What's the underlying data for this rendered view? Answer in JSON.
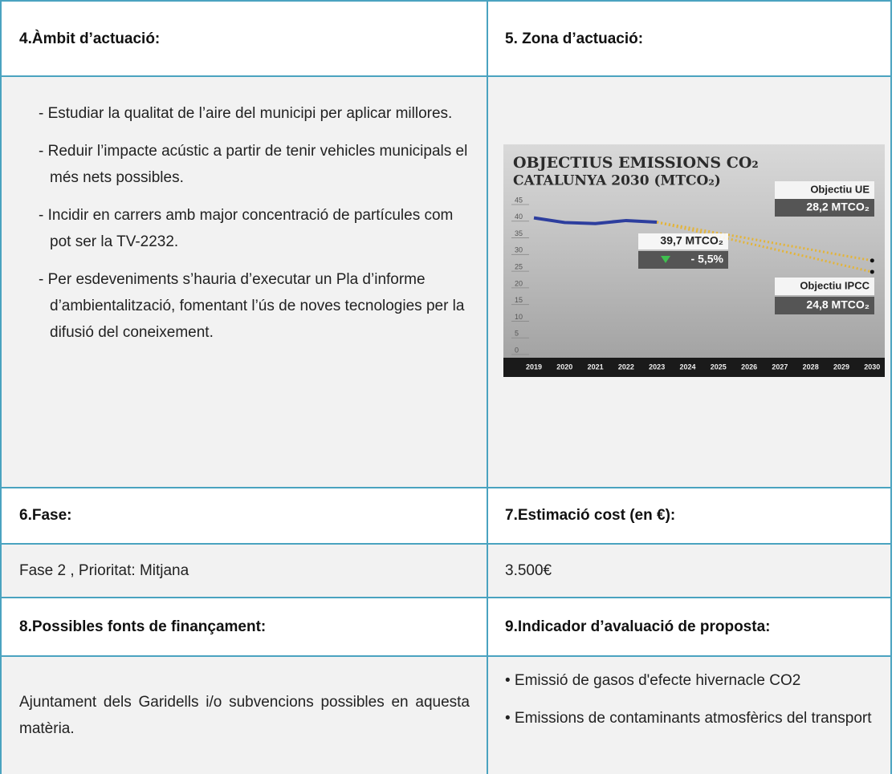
{
  "document": {
    "scope_header": "4.Àmbit d’actuació:",
    "zone_header": "5. Zona d’actuació:",
    "scope_items": [
      "- Estudiar la qualitat de l’aire del municipi per aplicar millores.",
      "- Reduir l’impacte acústic a partir de tenir vehicles municipals el més nets possibles.",
      "- Incidir en carrers amb major concentració de partícules com pot ser la TV-2232.",
      "- Per esdeveniments s’hauria d’executar un Pla d’informe d’ambientalització, fomentant l’ús de noves tecnologies per la difusió del coneixement."
    ],
    "phase_header": "6.Fase:",
    "cost_header": "7.Estimació cost (en €):",
    "phase": "Fase 2 , Prioritat: Mitjana",
    "cost": "3.500€",
    "funding_header": "8.Possibles fonts de finançament:",
    "indicator_header": "9.Indicador d’avaluació de proposta:",
    "funding": "Ajuntament dels Garidells i/o subvencions possibles en aquesta matèria.",
    "indicators": [
      "• Emissió de gasos d'efecte hivernacle CO2",
      "• Emissions de contaminants atmosfèrics del transport"
    ]
  },
  "chart_data": {
    "type": "line",
    "title": "OBJECTIUS EMISSIONS CO₂",
    "subtitle": "CATALUNYA 2030 (MTCO₂)",
    "categories": [
      "2019",
      "2020",
      "2021",
      "2022",
      "2023",
      "2024",
      "2025",
      "2026",
      "2027",
      "2028",
      "2029",
      "2030"
    ],
    "ylim": [
      0,
      45
    ],
    "yticks": [
      0,
      5,
      10,
      15,
      20,
      25,
      30,
      35,
      40,
      45
    ],
    "series": [
      {
        "color": "#2d3e9e",
        "values": [
          41,
          39.6,
          39.3,
          40.2,
          39.7,
          null,
          null,
          null,
          null,
          null,
          null,
          null
        ]
      },
      {
        "name": "Objectiu UE",
        "color": "#e3b43a",
        "values": [
          null,
          null,
          null,
          null,
          39.7,
          38.1,
          36.4,
          34.8,
          33.1,
          31.5,
          29.8,
          28.2
        ]
      },
      {
        "name": "Objectiu IPCC",
        "color": "#e3b43a",
        "values": [
          null,
          null,
          null,
          null,
          39.7,
          37.6,
          35.4,
          33.3,
          31.2,
          29.1,
          26.9,
          24.8
        ]
      }
    ],
    "annotations": [
      "28,2 MTCO₂",
      "39,7 MTCO₂",
      "- 5,5%",
      "24,8 MTCO₂"
    ]
  }
}
